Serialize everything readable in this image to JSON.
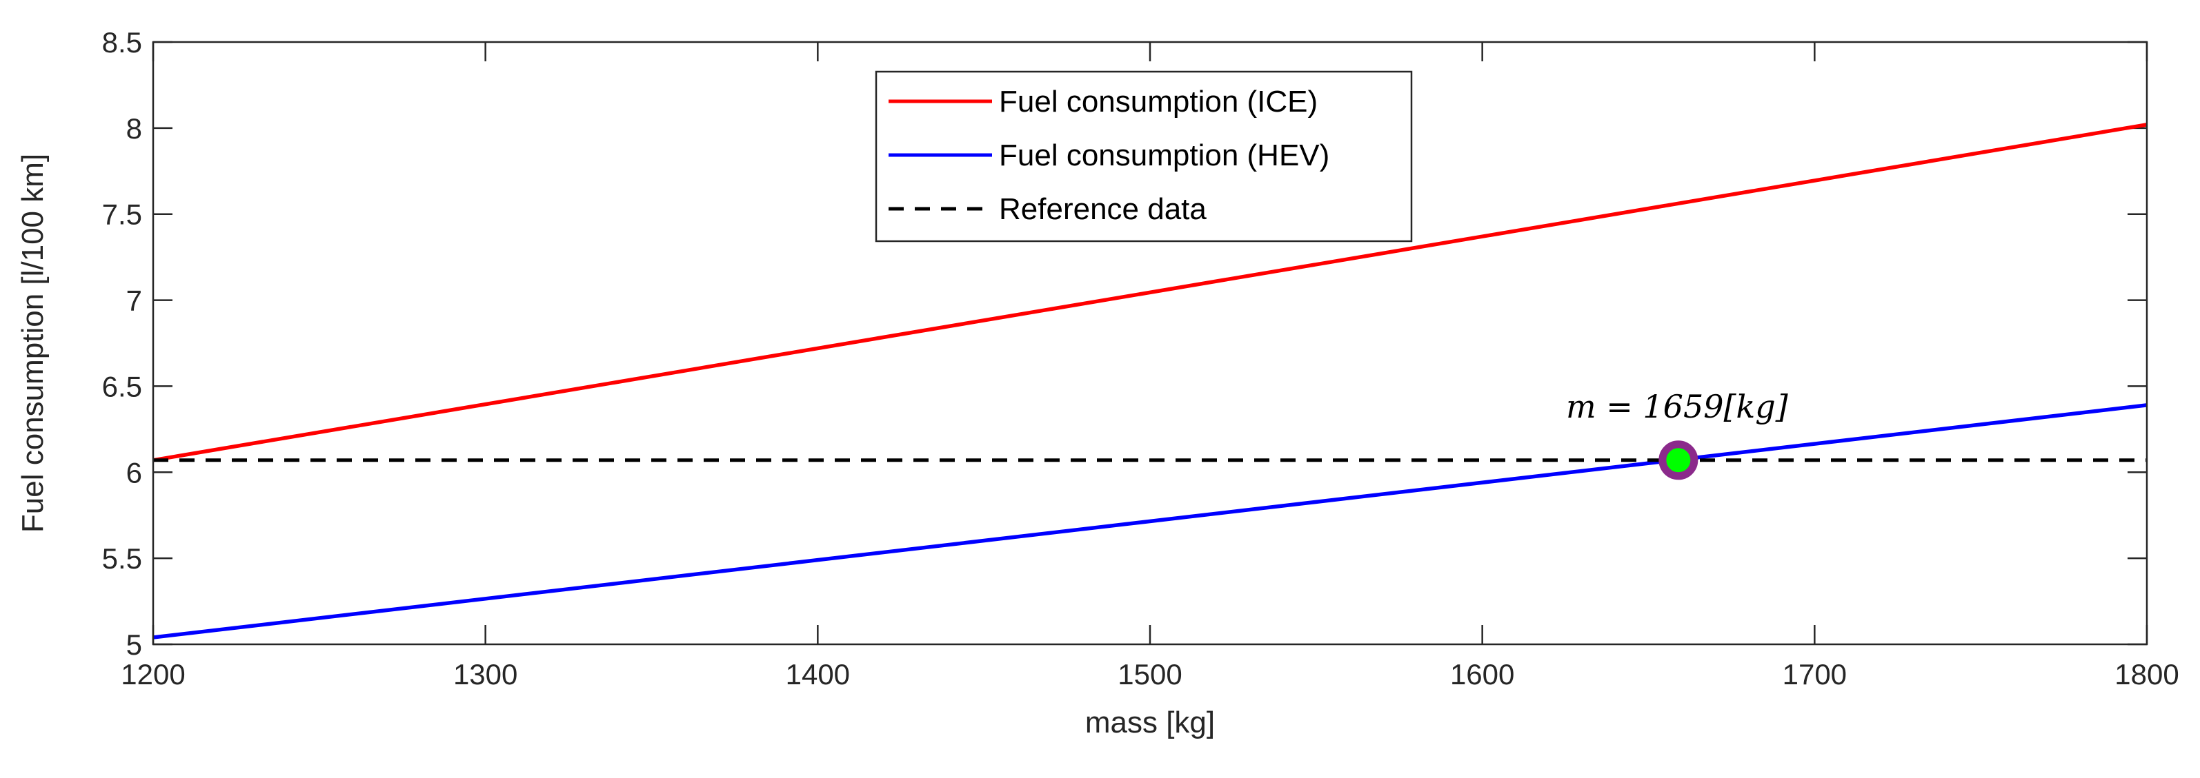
{
  "chart_data": {
    "type": "line",
    "xlabel": "mass [kg]",
    "ylabel": "Fuel consumption [l/100 km]",
    "xlim": [
      1200,
      1800
    ],
    "ylim": [
      5,
      8.5
    ],
    "x_ticks": [
      1200,
      1300,
      1400,
      1500,
      1600,
      1700,
      1800
    ],
    "y_ticks": [
      5,
      5.5,
      6,
      6.5,
      7,
      7.5,
      8,
      8.5
    ],
    "x_tick_labels": [
      "1200",
      "1300",
      "1400",
      "1500",
      "1600",
      "1700",
      "1800"
    ],
    "y_tick_labels": [
      "5",
      "5.5",
      "6",
      "6.5",
      "7",
      "7.5",
      "8",
      "8.5"
    ],
    "grid": false,
    "legend_position": "top-center",
    "series": [
      {
        "name": "Fuel consumption (ICE)",
        "color": "#ff0000",
        "style": "solid",
        "x": [
          1200,
          1800
        ],
        "y": [
          6.07,
          8.02
        ]
      },
      {
        "name": "Fuel consumption (HEV)",
        "color": "#0000ff",
        "style": "solid",
        "x": [
          1200,
          1800
        ],
        "y": [
          5.04,
          6.39
        ]
      },
      {
        "name": "Reference data",
        "color": "#000000",
        "style": "dashed",
        "x": [
          1200,
          1800
        ],
        "y": [
          6.07,
          6.07
        ]
      }
    ],
    "marker": {
      "x": 1659,
      "y": 6.07,
      "fill": "#00ff00",
      "edge": "#8b2a8b"
    },
    "annotation": {
      "text": "m = 1659[kg]",
      "x": 1659,
      "y": 6.07
    }
  }
}
